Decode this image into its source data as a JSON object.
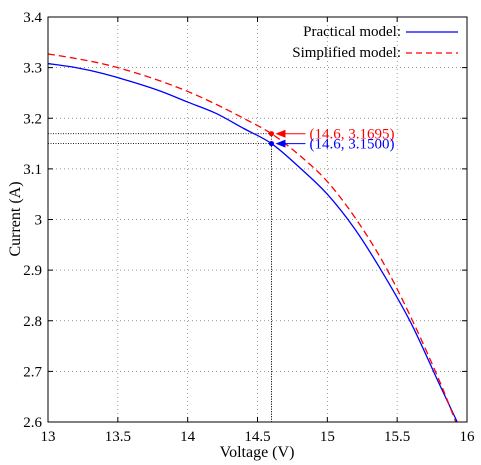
{
  "chart_data": {
    "type": "line",
    "xlabel": "Voltage (V)",
    "ylabel": "Current (A)",
    "xlim": [
      13,
      16
    ],
    "ylim": [
      2.6,
      3.4
    ],
    "grid": true,
    "legend_position": "top-right",
    "x_ticks": [
      "13",
      "13.5",
      "14",
      "14.5",
      "15",
      "15.5",
      "16"
    ],
    "y_ticks": [
      "2.6",
      "2.7",
      "2.8",
      "2.9",
      "3",
      "3.1",
      "3.2",
      "3.3",
      "3.4"
    ],
    "series": [
      {
        "name": "Practical model:",
        "color": "#0000ff",
        "style": "solid",
        "points": [
          [
            13.0,
            3.308
          ],
          [
            13.2,
            3.3
          ],
          [
            13.4,
            3.288
          ],
          [
            13.6,
            3.272
          ],
          [
            13.8,
            3.254
          ],
          [
            14.0,
            3.232
          ],
          [
            14.2,
            3.21
          ],
          [
            14.4,
            3.18
          ],
          [
            14.6,
            3.15
          ],
          [
            14.8,
            3.103
          ],
          [
            15.0,
            3.05
          ],
          [
            15.2,
            2.98
          ],
          [
            15.4,
            2.893
          ],
          [
            15.6,
            2.795
          ],
          [
            15.8,
            2.676
          ],
          [
            15.93,
            2.6
          ]
        ]
      },
      {
        "name": "Simplified model:",
        "color": "#ff0000",
        "style": "dashed",
        "points": [
          [
            13.0,
            3.327
          ],
          [
            13.2,
            3.318
          ],
          [
            13.4,
            3.307
          ],
          [
            13.6,
            3.292
          ],
          [
            13.8,
            3.274
          ],
          [
            14.0,
            3.253
          ],
          [
            14.2,
            3.228
          ],
          [
            14.4,
            3.2
          ],
          [
            14.6,
            3.1695
          ],
          [
            14.8,
            3.127
          ],
          [
            15.0,
            3.075
          ],
          [
            15.2,
            3.003
          ],
          [
            15.4,
            2.915
          ],
          [
            15.6,
            2.806
          ],
          [
            15.8,
            2.683
          ],
          [
            15.92,
            2.6
          ]
        ]
      }
    ],
    "annotations": [
      {
        "text": "(14.6, 3.1695)",
        "x": 14.6,
        "y": 3.1695,
        "color": "#ff0000"
      },
      {
        "text": "(14.6, 3.1500)",
        "x": 14.6,
        "y": 3.15,
        "color": "#0000ff"
      }
    ]
  }
}
